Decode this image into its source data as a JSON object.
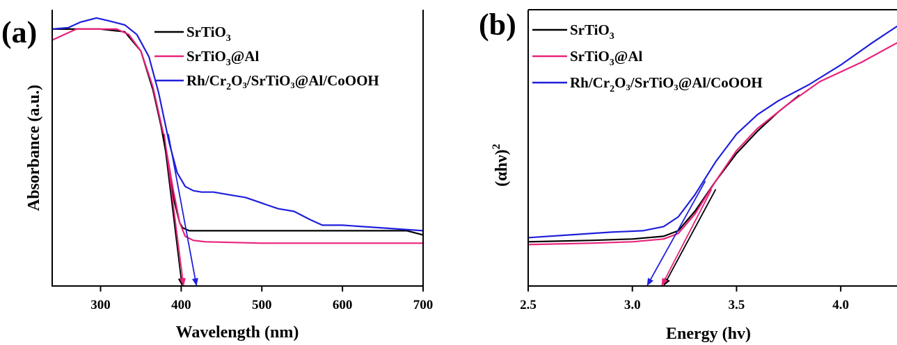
{
  "chart_data": [
    {
      "type": "line",
      "panel_label": "(a)",
      "xlabel": "Wavelength (nm)",
      "ylabel": "Absorbance (a.u.)",
      "xlim": [
        240,
        700
      ],
      "ylim": [
        0,
        1
      ],
      "xticks": [
        300,
        400,
        500,
        600,
        700
      ],
      "show_yticks": false,
      "legend_position": "top-center",
      "series": [
        {
          "name": "SrTiO",
          "sub": "3",
          "name_suffix": "",
          "color": "#000000",
          "x": [
            240,
            270,
            300,
            330,
            350,
            365,
            375,
            385,
            392,
            398,
            402,
            410,
            450,
            500,
            600,
            680,
            700
          ],
          "y": [
            0.93,
            0.93,
            0.93,
            0.92,
            0.85,
            0.71,
            0.58,
            0.42,
            0.3,
            0.23,
            0.21,
            0.2,
            0.2,
            0.2,
            0.2,
            0.2,
            0.185
          ]
        },
        {
          "name": "SrTiO",
          "sub": "3",
          "name_suffix": "@Al",
          "color": "#e8227a",
          "x": [
            240,
            255,
            270,
            290,
            320,
            335,
            350,
            365,
            378,
            390,
            398,
            405,
            415,
            430,
            500,
            600,
            700
          ],
          "y": [
            0.89,
            0.91,
            0.93,
            0.93,
            0.93,
            0.91,
            0.85,
            0.72,
            0.55,
            0.35,
            0.23,
            0.18,
            0.165,
            0.16,
            0.155,
            0.155,
            0.155
          ]
        },
        {
          "name": "Rh/Cr",
          "sub": "2",
          "name_suffix": "O₃/SrTiO₃@Al/CoOOH",
          "color": "#1f1fdc",
          "x": [
            240,
            260,
            275,
            295,
            310,
            330,
            345,
            360,
            372,
            385,
            395,
            405,
            415,
            425,
            440,
            460,
            480,
            500,
            520,
            540,
            560,
            575,
            600,
            650,
            700
          ],
          "y": [
            0.93,
            0.935,
            0.955,
            0.97,
            0.96,
            0.945,
            0.91,
            0.83,
            0.7,
            0.52,
            0.41,
            0.36,
            0.345,
            0.34,
            0.34,
            0.33,
            0.32,
            0.3,
            0.28,
            0.27,
            0.24,
            0.22,
            0.22,
            0.21,
            0.2
          ]
        }
      ],
      "tangent_lines": [
        {
          "color": "#000000",
          "x": [
            378,
            401
          ],
          "y": [
            0.55,
            0.0
          ]
        },
        {
          "color": "#e8227a",
          "x": [
            379,
            403
          ],
          "y": [
            0.55,
            0.0
          ]
        },
        {
          "color": "#1f1fdc",
          "x": [
            384,
            419
          ],
          "y": [
            0.55,
            0.0
          ]
        }
      ]
    },
    {
      "type": "line",
      "panel_label": "(b)",
      "xlabel": "Energy (hv)",
      "ylabel": "(αhν)",
      "ylabel_sup": "2",
      "xlim": [
        2.5,
        4.27
      ],
      "ylim": [
        0,
        1
      ],
      "xticks": [
        2.5,
        3.0,
        3.5,
        4.0
      ],
      "xtick_labels": [
        "2.5",
        "3.0",
        "3.5",
        "4.0"
      ],
      "show_yticks": false,
      "legend_position": "top-left",
      "series": [
        {
          "name": "SrTiO",
          "sub": "3",
          "name_suffix": "",
          "color": "#000000",
          "x": [
            2.5,
            2.8,
            3.0,
            3.15,
            3.22,
            3.3,
            3.4,
            3.5,
            3.6,
            3.7,
            3.8
          ],
          "y": [
            0.16,
            0.165,
            0.17,
            0.18,
            0.2,
            0.27,
            0.38,
            0.48,
            0.56,
            0.63,
            0.69
          ]
        },
        {
          "name": "SrTiO",
          "sub": "3",
          "name_suffix": "@Al",
          "color": "#e8227a",
          "x": [
            2.5,
            2.8,
            3.0,
            3.15,
            3.22,
            3.3,
            3.4,
            3.5,
            3.6,
            3.75,
            3.9,
            4.1,
            4.27
          ],
          "y": [
            0.15,
            0.155,
            0.16,
            0.17,
            0.19,
            0.26,
            0.38,
            0.49,
            0.57,
            0.66,
            0.74,
            0.81,
            0.88
          ]
        },
        {
          "name": "Rh/Cr",
          "sub": "2",
          "name_suffix": "O₃/SrTiO₃@Al/CoOOH",
          "color": "#1f1fdc",
          "x": [
            2.5,
            2.7,
            2.9,
            3.05,
            3.15,
            3.22,
            3.3,
            3.4,
            3.5,
            3.6,
            3.7,
            3.85,
            4.0,
            4.15,
            4.27
          ],
          "y": [
            0.175,
            0.185,
            0.195,
            0.2,
            0.215,
            0.25,
            0.33,
            0.45,
            0.55,
            0.62,
            0.67,
            0.73,
            0.8,
            0.88,
            0.94
          ]
        }
      ],
      "tangent_lines": [
        {
          "color": "#000000",
          "x": [
            3.15,
            3.4
          ],
          "y": [
            0.0,
            0.35
          ]
        },
        {
          "color": "#e8227a",
          "x": [
            3.14,
            3.38
          ],
          "y": [
            0.0,
            0.35
          ]
        },
        {
          "color": "#1f1fdc",
          "x": [
            3.07,
            3.35
          ],
          "y": [
            0.0,
            0.38
          ]
        }
      ]
    }
  ]
}
